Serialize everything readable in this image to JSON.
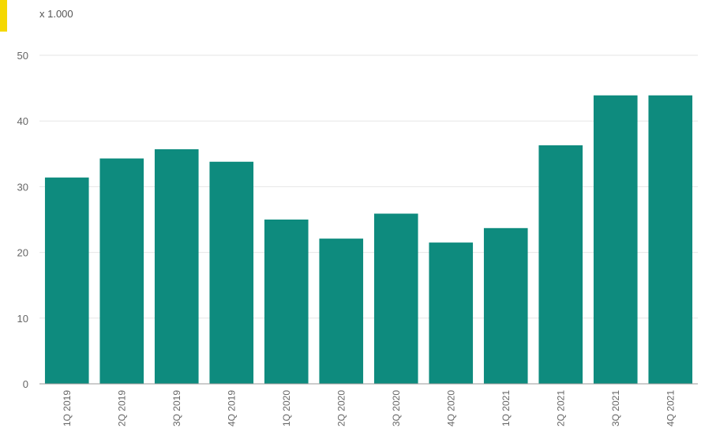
{
  "accent_color": "#f5d800",
  "chart_data": {
    "type": "bar",
    "unit_label": "x 1.000",
    "categories": [
      "1Q 2019",
      "2Q 2019",
      "3Q 2019",
      "4Q 2019",
      "1Q 2020",
      "2Q 2020",
      "3Q 2020",
      "4Q 2020",
      "1Q 2021",
      "2Q 2021",
      "3Q 2021",
      "4Q 2021"
    ],
    "values": [
      31.4,
      34.3,
      35.7,
      33.8,
      25.0,
      22.1,
      25.9,
      21.5,
      23.7,
      36.3,
      43.9,
      43.9
    ],
    "ylim": [
      0,
      50
    ],
    "yticks": [
      0,
      10,
      20,
      30,
      40,
      50
    ],
    "grid": true,
    "bar_color": "#0e8b7e",
    "grid_color": "#e6e6e6",
    "axis_color": "#999999"
  }
}
